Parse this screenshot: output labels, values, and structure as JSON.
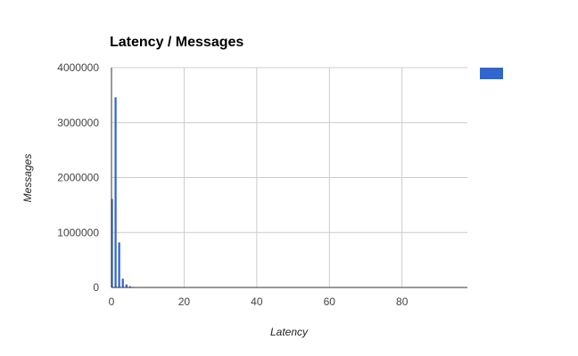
{
  "chart_data": {
    "type": "bar",
    "title": "Latency / Messages",
    "xlabel": "Latency",
    "ylabel": "Messages",
    "xlim": [
      0,
      98
    ],
    "ylim": [
      0,
      4000000
    ],
    "x_ticks": [
      0,
      20,
      40,
      60,
      80
    ],
    "y_ticks": [
      0,
      1000000,
      2000000,
      3000000,
      4000000
    ],
    "x_tick_labels": [
      "0",
      "20",
      "40",
      "60",
      "80"
    ],
    "y_tick_labels": [
      "0",
      "1000000",
      "2000000",
      "3000000",
      "4000000"
    ],
    "grid": true,
    "legend_position": "top-right",
    "series": [
      {
        "color": "#3366cc",
        "x": [
          0,
          1,
          2,
          3,
          4,
          5,
          6,
          7,
          8,
          9,
          10,
          11,
          12,
          13,
          14,
          15,
          16,
          17,
          18,
          19,
          20
        ],
        "values": [
          1610000,
          3460000,
          820000,
          160000,
          55000,
          22000,
          10000,
          5000,
          3000,
          2000,
          1500,
          1000,
          800,
          600,
          500,
          400,
          300,
          250,
          200,
          150,
          100
        ]
      }
    ]
  }
}
